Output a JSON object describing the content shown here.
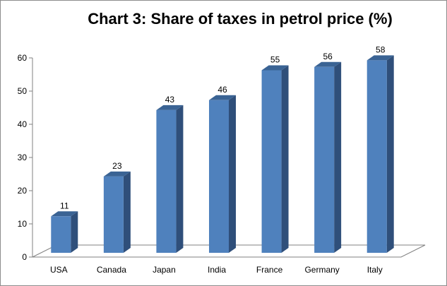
{
  "chart_data": {
    "type": "bar",
    "title": "Chart 3: Share of taxes in petrol price (%)",
    "xlabel": "",
    "ylabel": "",
    "categories": [
      "USA",
      "Canada",
      "Japan",
      "India",
      "France",
      "Germany",
      "Italy"
    ],
    "values": [
      11,
      23,
      43,
      46,
      55,
      56,
      58
    ],
    "data_labels": [
      "11",
      "23",
      "43",
      "46",
      "55",
      "56",
      "58"
    ],
    "ylim": [
      0,
      60
    ],
    "yticks": [
      "0",
      "10",
      "20",
      "30",
      "40",
      "50",
      "60"
    ],
    "grid": false,
    "legend": "none",
    "style": "3d-column",
    "colors": {
      "bar_front": "#4f81bd",
      "bar_side": "#2f4f7a",
      "bar_top": "#3a6394",
      "axis": "#808080"
    }
  }
}
